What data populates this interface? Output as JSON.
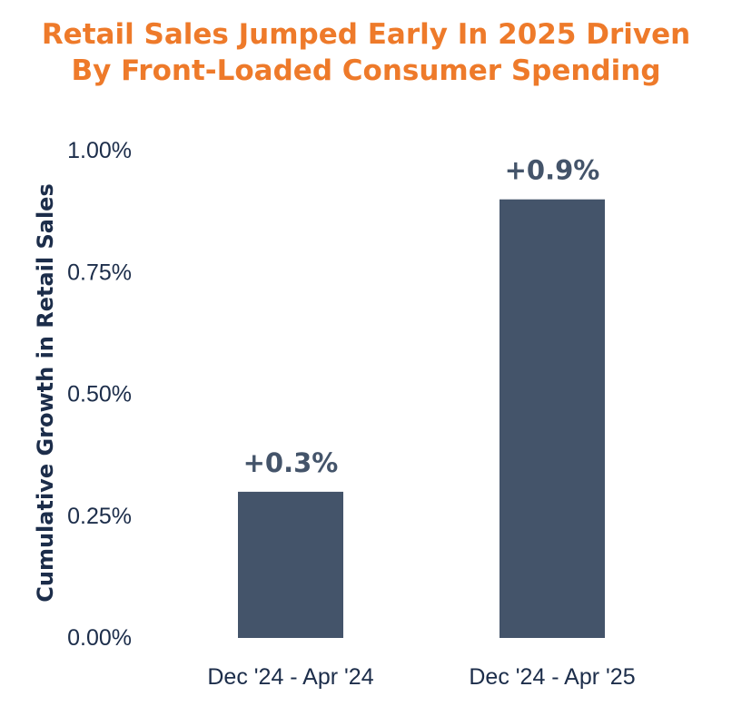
{
  "chart_data": {
    "type": "bar",
    "title_lines": [
      "Retail Sales Jumped Early In 2025 Driven",
      "By Front-Loaded Consumer Spending"
    ],
    "xlabel": "",
    "ylabel": "Cumulative Growth in Retail Sales",
    "categories": [
      "Dec '24 - Apr '24",
      "Dec '24 - Apr '25"
    ],
    "values": [
      0.3,
      0.9
    ],
    "data_labels": [
      "+0.3%",
      "+0.9%"
    ],
    "yticks": [
      "0.00%",
      "0.25%",
      "0.50%",
      "0.75%",
      "1.00%"
    ],
    "ylim": [
      0,
      1.0
    ],
    "grid": false,
    "legend": "none",
    "colors": {
      "bar": "#44546a",
      "title": "#ee7a2a",
      "text": "#1c2d4a"
    }
  }
}
